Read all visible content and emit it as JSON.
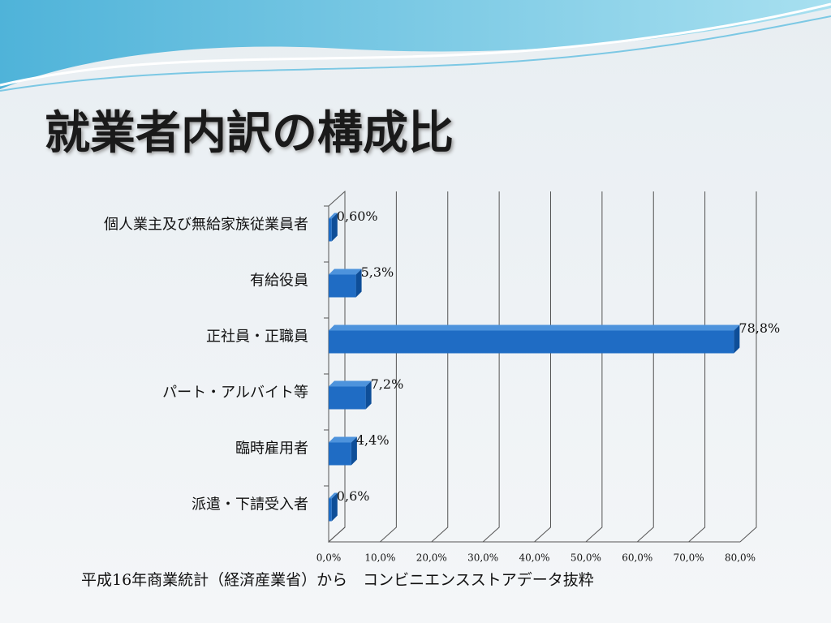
{
  "chart_data": {
    "type": "bar",
    "orientation": "horizontal",
    "title": "就業者内訳の構成比",
    "categories": [
      "個人業主及び無給家族従業員者",
      "有給役員",
      "正社員・正職員",
      "パート・アルバイト等",
      "臨時雇用者",
      "派遣・下請受入者"
    ],
    "values": [
      0.6,
      5.3,
      78.8,
      7.2,
      4.4,
      0.6
    ],
    "value_labels": [
      "0,60%",
      "5,3%",
      "78,8%",
      "7,2%",
      "4,4%",
      "0,6%"
    ],
    "color": "#1f6cc4",
    "xlim": [
      0,
      80
    ],
    "xticks": [
      {
        "value": 0,
        "label": "0,0%"
      },
      {
        "value": 10,
        "label": "10,0%"
      },
      {
        "value": 20,
        "label": "20,0%"
      },
      {
        "value": 30,
        "label": "30,0%"
      },
      {
        "value": 40,
        "label": "40,0%"
      },
      {
        "value": 50,
        "label": "50,0%"
      },
      {
        "value": 60,
        "label": "60,0%"
      },
      {
        "value": 70,
        "label": "70,0%"
      },
      {
        "value": 80,
        "label": "80,0%"
      }
    ],
    "grid": true,
    "note": "平成16年商業統計（経済産業省）から　コンビニエンスストアデータ抜粋"
  }
}
